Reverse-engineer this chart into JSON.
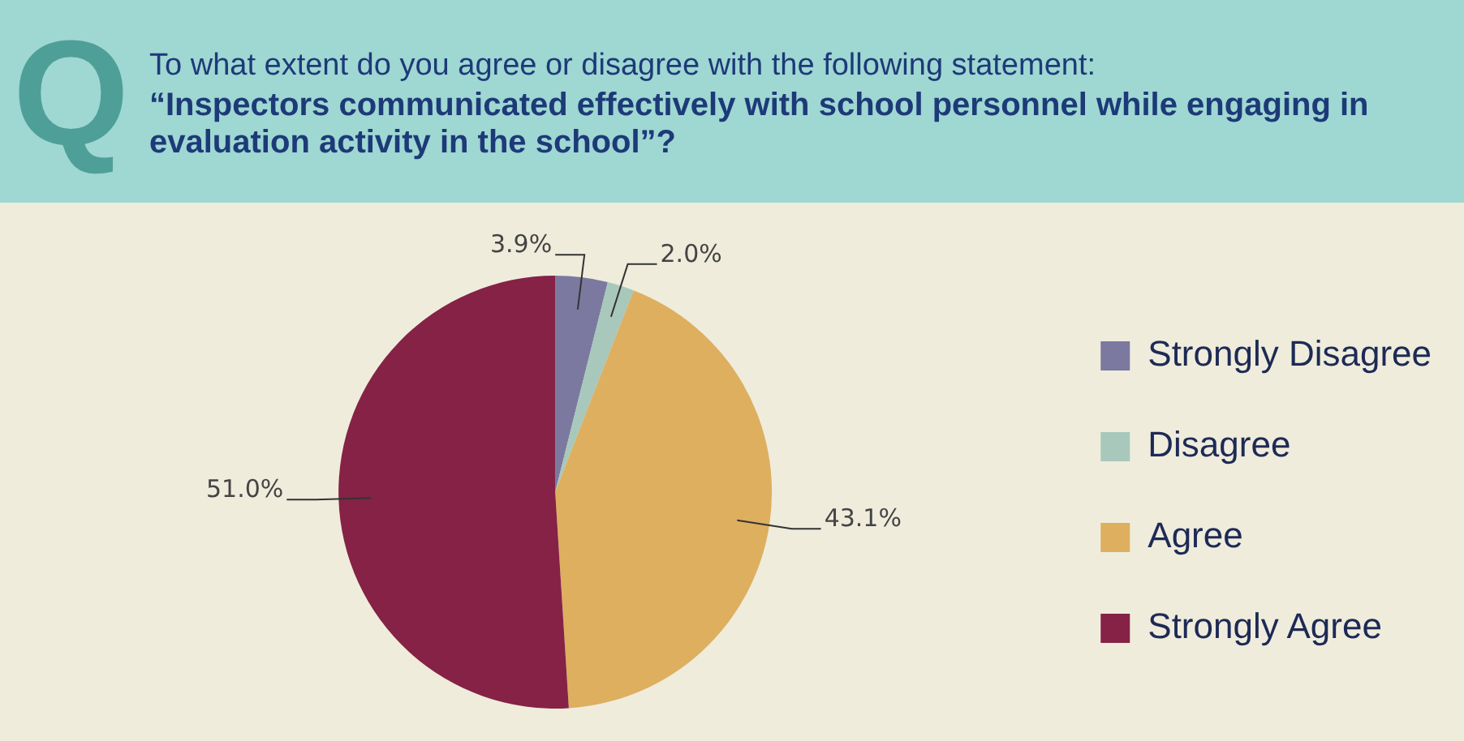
{
  "chart_data": {
    "type": "pie",
    "title": "To what extent do you agree or disagree with the following statement:",
    "subtitle": "“Inspectors communicated effectively with school personnel while engaging in evaluation activity in the school”?",
    "annotations": [
      "Q"
    ],
    "categories": [
      "Strongly Disagree",
      "Disagree",
      "Agree",
      "Strongly Agree"
    ],
    "values": [
      3.9,
      2.0,
      43.1,
      51.0
    ],
    "colors": [
      "#7b799f",
      "#a8c8bc",
      "#ddaf5f",
      "#852246"
    ],
    "value_labels": [
      "3.9%",
      "2.0%",
      "43.1%",
      "51.0%"
    ],
    "legend": "right"
  }
}
